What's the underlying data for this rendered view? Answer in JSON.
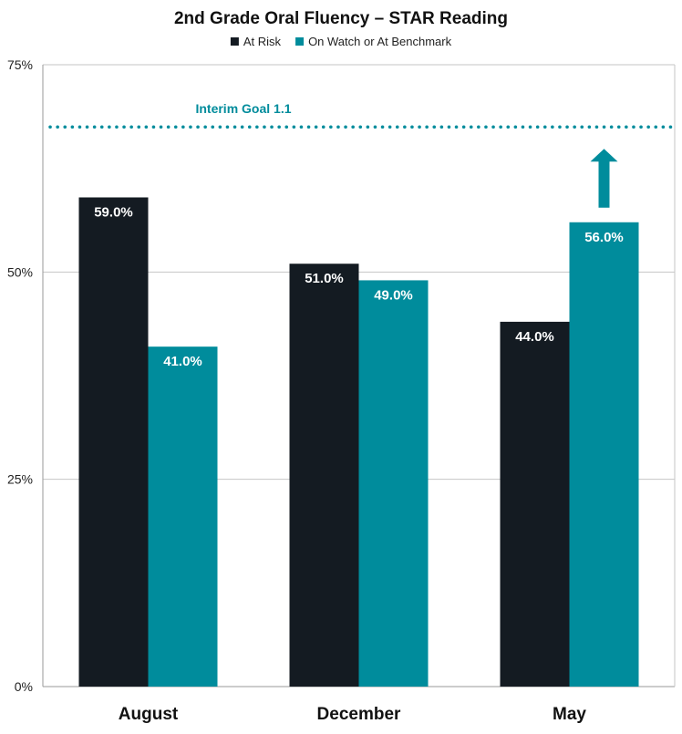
{
  "chart_data": {
    "type": "bar",
    "title": "2nd Grade Oral Fluency – STAR Reading",
    "categories": [
      "August",
      "December",
      "May"
    ],
    "series": [
      {
        "name": "At Risk",
        "color": "#141b22",
        "values": [
          59.0,
          51.0,
          44.0
        ],
        "labels": [
          "59.0%",
          "51.0%",
          "44.0%"
        ]
      },
      {
        "name": "On Watch or At Benchmark",
        "color": "#008c9c",
        "values": [
          41.0,
          49.0,
          56.0
        ],
        "labels": [
          "41.0%",
          "49.0%",
          "56.0%"
        ]
      }
    ],
    "ylim": [
      0,
      75
    ],
    "yticks": [
      0,
      25,
      50,
      75
    ],
    "ytick_labels": [
      "0%",
      "25%",
      "50%",
      "75%"
    ],
    "gridlines": true,
    "legend_position": "top-center",
    "reference_line": {
      "label": "Interim Goal 1.1",
      "value": 67.5,
      "color": "#008c9c",
      "style": "dotted"
    },
    "annotation": {
      "type": "up-arrow",
      "category": "May",
      "series": "On Watch or At Benchmark",
      "color": "#008c9c"
    }
  }
}
